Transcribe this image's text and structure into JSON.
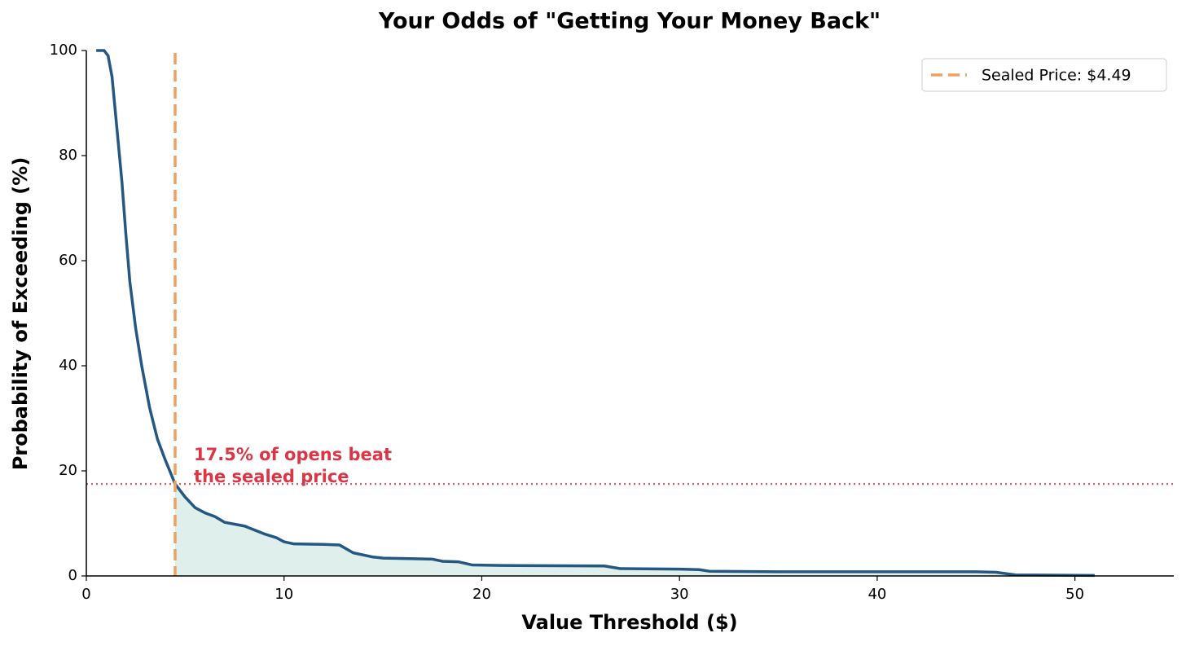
{
  "chart_data": {
    "type": "line",
    "title": "Your Odds of \"Getting Your Money Back\"",
    "x_label": "Value Threshold ($)",
    "y_label": "Probability of Exceeding (%)",
    "x": [
      0.5,
      0.9,
      1.1,
      1.3,
      1.5,
      1.8,
      2.0,
      2.2,
      2.5,
      2.8,
      3.2,
      3.6,
      4.0,
      4.49,
      5.0,
      5.5,
      6.0,
      6.5,
      7.0,
      8.0,
      9.0,
      9.6,
      10.0,
      10.5,
      12.0,
      12.8,
      13.5,
      14.5,
      15.0,
      17.5,
      18.0,
      18.8,
      19.5,
      21.0,
      26.2,
      27.0,
      30.0,
      31.0,
      31.5,
      35.0,
      45.0,
      46.0,
      47.0,
      51.0
    ],
    "values": [
      100,
      100,
      99,
      95,
      87,
      75,
      65,
      56,
      47,
      40,
      32,
      26,
      22,
      17.5,
      15,
      13,
      12,
      11.3,
      10.2,
      9.5,
      8.0,
      7.3,
      6.5,
      6.1,
      6.0,
      5.9,
      4.4,
      3.6,
      3.4,
      3.2,
      2.8,
      2.7,
      2.1,
      2.0,
      1.9,
      1.4,
      1.3,
      1.2,
      0.9,
      0.8,
      0.8,
      0.7,
      0.2,
      0.1
    ],
    "color": "#245883",
    "fill_color": "#dff0ec",
    "sealed_price": {
      "value": 4.49,
      "label": "Sealed Price: $4.49",
      "color": "#f0a060"
    },
    "threshold": {
      "value": 17.5,
      "color": "#e05a63"
    },
    "annotation": [
      "17.5% of opens beat",
      "the sealed price"
    ],
    "annotation_color": "#dc3545",
    "xlim": [
      0,
      55
    ],
    "xticks": [
      0,
      10,
      20,
      30,
      40,
      50
    ],
    "ylim": [
      0,
      100
    ],
    "yticks": [
      0,
      20,
      40,
      60,
      80,
      100
    ],
    "legend": "upper right"
  }
}
